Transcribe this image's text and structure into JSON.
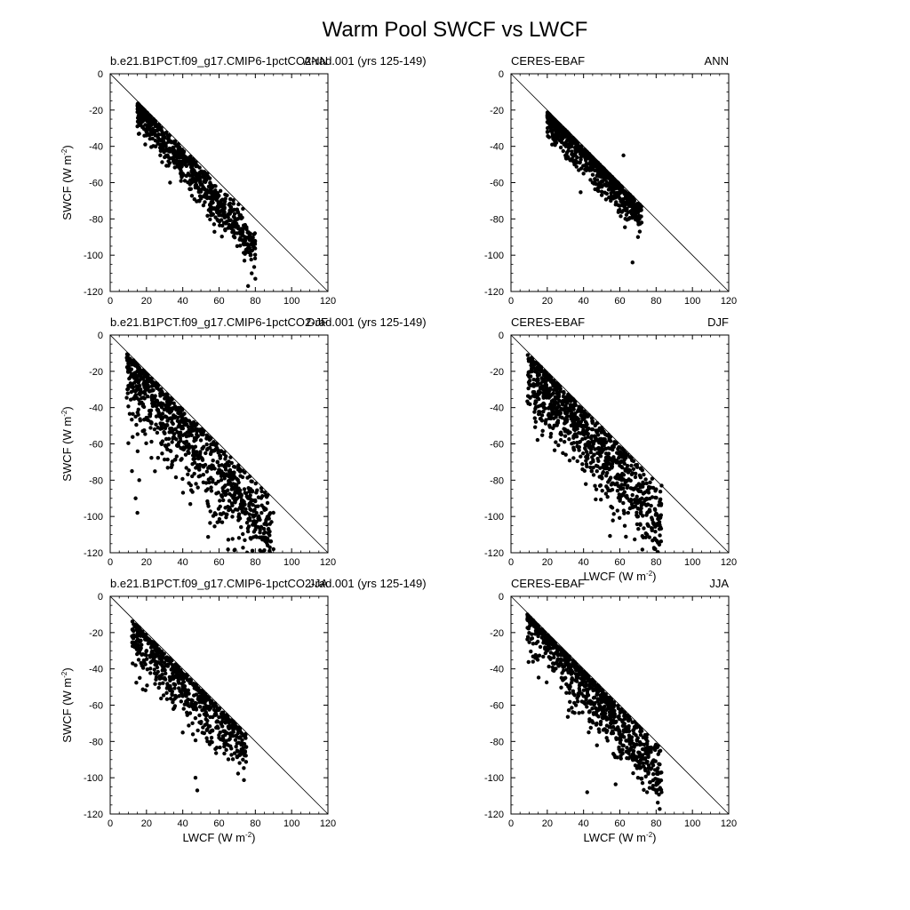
{
  "figure": {
    "title": "Warm Pool SWCF vs LWCF"
  },
  "chart_data": [
    {
      "type": "scatter",
      "left_label": "b.e21.B1PCT.f09_g17.CMIP6-1pctCO2-rad.001 (yrs 125-149)",
      "right_label": "ANN",
      "xlabel": "",
      "ylabel": "SWCF (W m-2)",
      "xlim": [
        0,
        120
      ],
      "ylim": [
        -120,
        0
      ],
      "xticks": [
        0,
        20,
        40,
        60,
        80,
        100,
        120
      ],
      "yticks": [
        0,
        -20,
        -40,
        -60,
        -80,
        -100,
        -120
      ],
      "one_to_one_line": true,
      "gen": {
        "xmin": 15,
        "xmax": 80,
        "a": -18,
        "b": -1.18,
        "spread": 5,
        "bias": -3,
        "n": 650,
        "seed": 11
      },
      "x": [
        16,
        20,
        25,
        30,
        33,
        40,
        45,
        50,
        55,
        60,
        65,
        70,
        74,
        76,
        78,
        80
      ],
      "y": [
        -33,
        -34,
        -40,
        -46,
        -60,
        -55,
        -60,
        -65,
        -72,
        -78,
        -85,
        -95,
        -103,
        -117,
        -110,
        -113
      ]
    },
    {
      "type": "scatter",
      "left_label": "CERES-EBAF",
      "right_label": "ANN",
      "xlabel": "",
      "ylabel": "",
      "xlim": [
        0,
        120
      ],
      "ylim": [
        -120,
        0
      ],
      "xticks": [
        0,
        20,
        40,
        60,
        80,
        100,
        120
      ],
      "yticks": [
        0,
        -20,
        -40,
        -60,
        -80,
        -100,
        -120
      ],
      "one_to_one_line": true,
      "gen": {
        "xmin": 20,
        "xmax": 72,
        "a": -20,
        "b": -1.05,
        "spread": 6,
        "bias": -3,
        "n": 750,
        "seed": 23
      },
      "x": [
        21,
        25,
        30,
        31,
        35,
        40,
        45,
        50,
        55,
        60,
        62,
        65,
        67,
        70,
        72
      ],
      "y": [
        -35,
        -38,
        -45,
        -32,
        -50,
        -55,
        -60,
        -65,
        -70,
        -75,
        -45,
        -80,
        -104,
        -90,
        -82
      ]
    },
    {
      "type": "scatter",
      "left_label": "b.e21.B1PCT.f09_g17.CMIP6-1pctCO2-rad.001 (yrs 125-149)",
      "right_label": "DJF",
      "xlabel": "",
      "ylabel": "SWCF (W m-2)",
      "xlim": [
        0,
        120
      ],
      "ylim": [
        -120,
        0
      ],
      "xticks": [
        0,
        20,
        40,
        60,
        80,
        100,
        120
      ],
      "yticks": [
        0,
        -20,
        -40,
        -60,
        -80,
        -100,
        -120
      ],
      "one_to_one_line": true,
      "gen": {
        "xmin": 9,
        "xmax": 90,
        "a": -14,
        "b": -1.15,
        "spread": 9,
        "bias": -8,
        "n": 900,
        "seed": 37
      },
      "x": [
        10,
        12,
        14,
        15,
        16,
        20,
        25,
        30,
        40,
        50,
        60,
        70,
        80,
        85,
        88,
        90
      ],
      "y": [
        -28,
        -75,
        -90,
        -98,
        -80,
        -27,
        -28,
        -35,
        -48,
        -58,
        -75,
        -90,
        -105,
        -112,
        -117,
        -118
      ]
    },
    {
      "type": "scatter",
      "left_label": "CERES-EBAF",
      "right_label": "DJF",
      "xlabel": "LWCF (W m-2)",
      "ylabel": "",
      "xlim": [
        0,
        120
      ],
      "ylim": [
        -120,
        0
      ],
      "xticks": [
        0,
        20,
        40,
        60,
        80,
        100,
        120
      ],
      "yticks": [
        0,
        -20,
        -40,
        -60,
        -80,
        -100,
        -120
      ],
      "one_to_one_line": true,
      "gen": {
        "xmin": 9,
        "xmax": 83,
        "a": -15,
        "b": -1.15,
        "spread": 10,
        "bias": -6,
        "n": 950,
        "seed": 53
      },
      "x": [
        10,
        15,
        20,
        25,
        30,
        40,
        50,
        60,
        65,
        70,
        75,
        80,
        83
      ],
      "y": [
        -23,
        -25,
        -30,
        -35,
        -40,
        -50,
        -60,
        -70,
        -80,
        -100,
        -110,
        -85,
        -83
      ]
    },
    {
      "type": "scatter",
      "left_label": "b.e21.B1PCT.f09_g17.CMIP6-1pctCO2-rad.001 (yrs 125-149)",
      "right_label": "JJA",
      "xlabel": "LWCF (W m-2)",
      "ylabel": "SWCF (W m-2)",
      "xlim": [
        0,
        120
      ],
      "ylim": [
        -120,
        0
      ],
      "xticks": [
        0,
        20,
        40,
        60,
        80,
        100,
        120
      ],
      "yticks": [
        0,
        -20,
        -40,
        -60,
        -80,
        -100,
        -120
      ],
      "one_to_one_line": true,
      "gen": {
        "xmin": 12,
        "xmax": 75,
        "a": -18,
        "b": -1.0,
        "spread": 8,
        "bias": -5,
        "n": 600,
        "seed": 71
      },
      "x": [
        12,
        14,
        16,
        20,
        25,
        30,
        40,
        47,
        48,
        50,
        55,
        60,
        65,
        70,
        75
      ],
      "y": [
        -22,
        -38,
        -25,
        -30,
        -32,
        -45,
        -55,
        -100,
        -107,
        -70,
        -75,
        -78,
        -82,
        -85,
        -83
      ]
    },
    {
      "type": "scatter",
      "left_label": "CERES-EBAF",
      "right_label": "JJA",
      "xlabel": "LWCF (W m-2)",
      "ylabel": "",
      "xlim": [
        0,
        120
      ],
      "ylim": [
        -120,
        0
      ],
      "xticks": [
        0,
        20,
        40,
        60,
        80,
        100,
        120
      ],
      "yticks": [
        0,
        -20,
        -40,
        -60,
        -80,
        -100,
        -120
      ],
      "one_to_one_line": true,
      "gen": {
        "xmin": 9,
        "xmax": 83,
        "a": -5,
        "b": -1.25,
        "spread": 8,
        "bias": -5,
        "n": 900,
        "seed": 89
      },
      "x": [
        9,
        12,
        15,
        20,
        30,
        40,
        42,
        50,
        55,
        60,
        65,
        70,
        75,
        80,
        83
      ],
      "y": [
        -10,
        -15,
        -22,
        -30,
        -45,
        -55,
        -108,
        -65,
        -70,
        -78,
        -85,
        -100,
        -108,
        -104,
        -108
      ]
    }
  ]
}
